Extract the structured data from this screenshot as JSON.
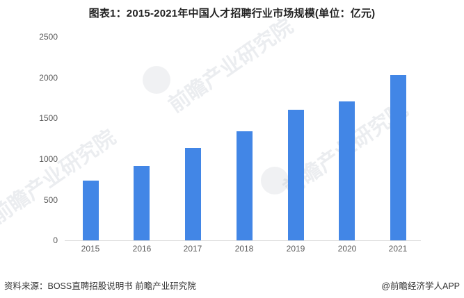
{
  "title": "图表1：2015-2021年中国人才招聘行业市场规模(单位：亿元)",
  "footer": {
    "source": "资料来源：BOSS直聘招股说明书 前瞻产业研究院",
    "credit": "@前瞻经济学人APP"
  },
  "watermark": "前瞻产业研究院",
  "colors": {
    "bar": "#4286e6",
    "axis": "#d9d9d9",
    "tick_text": "#595959"
  },
  "chart_data": {
    "type": "bar",
    "title": "图表1：2015-2021年中国人才招聘行业市场规模(单位：亿元)",
    "xlabel": "",
    "ylabel": "",
    "unit": "亿元",
    "categories": [
      "2015",
      "2016",
      "2017",
      "2018",
      "2019",
      "2020",
      "2021"
    ],
    "values": [
      735,
      910,
      1135,
      1340,
      1600,
      1710,
      2030
    ],
    "ylim": [
      0,
      2500
    ],
    "yticks": [
      "0",
      "500",
      "1000",
      "1500",
      "2000",
      "2500"
    ],
    "grid": false,
    "legend": null
  }
}
